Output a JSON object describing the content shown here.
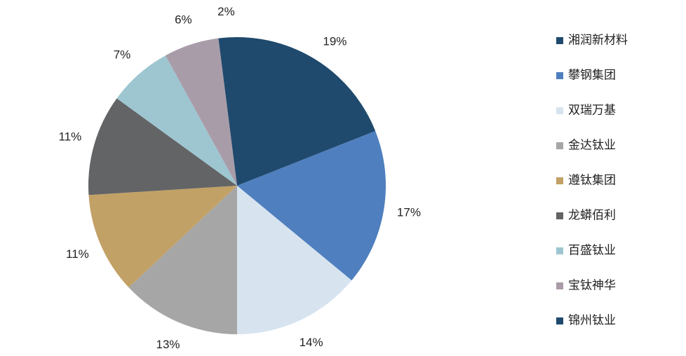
{
  "chart_data": {
    "type": "pie",
    "categories": [
      "湘润新材料",
      "攀钢集团",
      "双瑞万基",
      "金达钛业",
      "遵钛集团",
      "龙蟒佰利",
      "百盛钛业",
      "宝钛神华",
      "锦州钛业"
    ],
    "values": [
      19,
      17,
      14,
      13,
      11,
      11,
      7,
      6,
      2
    ],
    "value_labels": [
      "19%",
      "17%",
      "14%",
      "13%",
      "11%",
      "11%",
      "7%",
      "6%",
      "2%"
    ],
    "colors": [
      "#1f4a6d",
      "#4f7fbe",
      "#d7e4f0",
      "#a6a6a6",
      "#c2a166",
      "#636466",
      "#9ec6d1",
      "#a99ca9",
      "#1f4a6d"
    ],
    "legend": "right"
  }
}
